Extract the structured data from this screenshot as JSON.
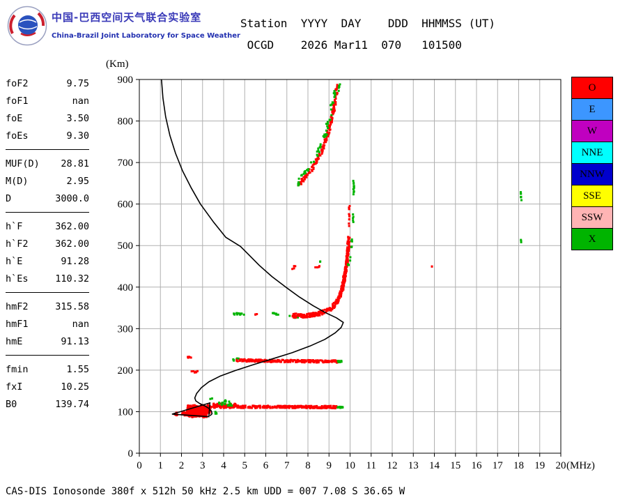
{
  "header": {
    "org_title_cn": "中国-巴西空间天气联合实验室",
    "org_title_en": "China-Brazil Joint Laboratory for Space Weather",
    "station_line1": "Station  YYYY  DAY    DDD  HHMMSS (UT)",
    "station_line2": " OCGD    2026 Mar11  070   101500"
  },
  "params": {
    "groups": [
      {
        "items": [
          {
            "label": "foF2",
            "value": "9.75"
          },
          {
            "label": "foF1",
            "value": "nan"
          },
          {
            "label": "foE",
            "value": "3.50"
          },
          {
            "label": "foEs",
            "value": "9.30"
          }
        ]
      },
      {
        "items": [
          {
            "label": "MUF(D)",
            "value": "28.81"
          },
          {
            "label": "M(D)",
            "value": "2.95"
          },
          {
            "label": "D",
            "value": "3000.0"
          }
        ]
      },
      {
        "items": [
          {
            "label": "h`F",
            "value": "362.00"
          },
          {
            "label": "h`F2",
            "value": "362.00"
          },
          {
            "label": "h`E",
            "value": "91.28"
          },
          {
            "label": "h`Es",
            "value": "110.32"
          }
        ]
      },
      {
        "items": [
          {
            "label": "hmF2",
            "value": "315.58"
          },
          {
            "label": "hmF1",
            "value": "nan"
          },
          {
            "label": "hmE",
            "value": "91.13"
          }
        ]
      },
      {
        "items": [
          {
            "label": "fmin",
            "value": "1.55"
          },
          {
            "label": "fxI",
            "value": "10.25"
          },
          {
            "label": "B0",
            "value": "139.74"
          }
        ]
      }
    ]
  },
  "legend": {
    "items": [
      {
        "label": "O",
        "color": "#ff0000"
      },
      {
        "label": "E",
        "color": "#3c96ff"
      },
      {
        "label": "W",
        "color": "#c000c0"
      },
      {
        "label": "NNE",
        "color": "#00ffff"
      },
      {
        "label": "NNW",
        "color": "#0000cd"
      },
      {
        "label": "SSE",
        "color": "#ffff00"
      },
      {
        "label": "SSW",
        "color": "#ffb4b4"
      },
      {
        "label": "X",
        "color": "#00b400"
      }
    ]
  },
  "footer": {
    "text": "CAS-DIS Ionosonde 380f x 512h 50 kHz 2.5 km UDD = 007 7.08 S 36.65 W"
  },
  "chart_data": {
    "type": "scatter",
    "title": "",
    "xlabel": "(MHz)",
    "ylabel": "(Km)",
    "xlim": [
      0,
      20
    ],
    "ylim": [
      0,
      900
    ],
    "grid": true,
    "x_ticks": [
      0,
      1,
      2,
      3,
      4,
      5,
      6,
      7,
      8,
      9,
      10,
      11,
      12,
      13,
      14,
      15,
      16,
      17,
      18,
      19,
      20
    ],
    "y_ticks": [
      0,
      100,
      200,
      300,
      400,
      500,
      600,
      700,
      800,
      900
    ],
    "legend_note": "O-trace red, X-trace green",
    "profile": {
      "color": "#000000",
      "main": [
        [
          1.05,
          900
        ],
        [
          1.12,
          855
        ],
        [
          1.25,
          810
        ],
        [
          1.45,
          765
        ],
        [
          1.72,
          722
        ],
        [
          2.05,
          680
        ],
        [
          2.45,
          640
        ],
        [
          2.9,
          600
        ],
        [
          3.5,
          558
        ],
        [
          4.1,
          520
        ],
        [
          4.8,
          498
        ],
        [
          5.15,
          480
        ],
        [
          5.7,
          452
        ],
        [
          6.3,
          425
        ],
        [
          6.95,
          400
        ],
        [
          7.6,
          376
        ],
        [
          8.25,
          355
        ],
        [
          8.85,
          338
        ],
        [
          9.35,
          326
        ],
        [
          9.68,
          315
        ],
        [
          9.58,
          303
        ],
        [
          9.3,
          290
        ],
        [
          8.8,
          274
        ],
        [
          8.1,
          258
        ],
        [
          7.25,
          242
        ],
        [
          6.3,
          227
        ],
        [
          5.4,
          213
        ],
        [
          4.55,
          199
        ],
        [
          3.85,
          186
        ],
        [
          3.3,
          172
        ],
        [
          2.95,
          158
        ],
        [
          2.72,
          144
        ],
        [
          2.63,
          133
        ],
        [
          2.68,
          126
        ],
        [
          2.85,
          120
        ],
        [
          3.1,
          114
        ],
        [
          3.3,
          108
        ],
        [
          3.42,
          101
        ],
        [
          3.45,
          95
        ],
        [
          3.35,
          90
        ]
      ],
      "e_polygon": [
        [
          1.55,
          94
        ],
        [
          3.35,
          121
        ],
        [
          3.3,
          88
        ]
      ]
    },
    "traces": [
      {
        "color": "#ff0000",
        "pts": [
          [
            2.25,
            107
          ],
          [
            3.35,
            107
          ]
        ],
        "n": 160,
        "jy": 9,
        "jx": 0.05,
        "s": 3
      },
      {
        "color": "#ff0000",
        "pts": [
          [
            2.25,
            98
          ],
          [
            3.3,
            98
          ]
        ],
        "n": 120,
        "jy": 8,
        "jx": 0.05,
        "s": 3
      },
      {
        "color": "#ff0000",
        "pts": [
          [
            1.7,
            95
          ],
          [
            2.2,
            95
          ]
        ],
        "n": 14,
        "jy": 4,
        "jx": 0.05,
        "s": 3
      },
      {
        "color": "#ff0000",
        "pts": [
          [
            2.3,
            91
          ],
          [
            3.2,
            90
          ]
        ],
        "n": 40,
        "jy": 4,
        "jx": 0.05,
        "s": 3
      },
      {
        "color": "#ff0000",
        "pts": [
          [
            3.35,
            112
          ],
          [
            9.35,
            111
          ]
        ],
        "n": 300,
        "jy": 3,
        "jx": 0.03,
        "s": 3
      },
      {
        "color": "#ff0000",
        "pts": [
          [
            3.4,
            117
          ],
          [
            4.7,
            116
          ]
        ],
        "n": 40,
        "jy": 3,
        "jx": 0.03,
        "s": 3
      },
      {
        "color": "#00b400",
        "pts": [
          [
            3.75,
            119
          ],
          [
            4.4,
            117
          ]
        ],
        "n": 16,
        "jy": 4,
        "jx": 0.04,
        "s": 3
      },
      {
        "color": "#00b400",
        "pts": [
          [
            3.95,
            126
          ],
          [
            4.3,
            125
          ]
        ],
        "n": 6,
        "jy": 2,
        "jx": 0.03,
        "s": 3
      },
      {
        "color": "#00b400",
        "pts": [
          [
            3.55,
            99
          ],
          [
            3.7,
            97
          ]
        ],
        "n": 4,
        "jy": 3,
        "jx": 0.03,
        "s": 3
      },
      {
        "color": "#00b400",
        "pts": [
          [
            9.35,
            110
          ],
          [
            9.65,
            110
          ]
        ],
        "n": 10,
        "jy": 2,
        "jx": 0.03,
        "s": 3
      },
      {
        "color": "#00b400",
        "pts": [
          [
            3.3,
            131
          ],
          [
            3.5,
            131
          ]
        ],
        "n": 3,
        "jy": 1,
        "jx": 0.03,
        "s": 3
      },
      {
        "color": "#ff0000",
        "pts": [
          [
            2.5,
            196
          ],
          [
            2.75,
            196
          ]
        ],
        "n": 7,
        "jy": 2,
        "jx": 0.03,
        "s": 3
      },
      {
        "color": "#ff0000",
        "pts": [
          [
            2.3,
            231
          ],
          [
            2.5,
            231
          ]
        ],
        "n": 6,
        "jy": 2,
        "jx": 0.03,
        "s": 3
      },
      {
        "color": "#00b400",
        "pts": [
          [
            4.45,
            226
          ],
          [
            4.7,
            225
          ]
        ],
        "n": 8,
        "jy": 3,
        "jx": 0.03,
        "s": 3
      },
      {
        "color": "#ff0000",
        "pts": [
          [
            4.6,
            224
          ],
          [
            6.5,
            222
          ],
          [
            9.4,
            221
          ]
        ],
        "n": 240,
        "jy": 3,
        "jx": 0.03,
        "s": 3
      },
      {
        "color": "#00b400",
        "pts": [
          [
            9.4,
            221
          ],
          [
            9.62,
            221
          ]
        ],
        "n": 8,
        "jy": 2,
        "jx": 0.03,
        "s": 3
      },
      {
        "color": "#00b400",
        "pts": [
          [
            4.4,
            336
          ],
          [
            5.0,
            335
          ]
        ],
        "n": 14,
        "jy": 2,
        "jx": 0.04,
        "s": 3
      },
      {
        "color": "#ff0000",
        "pts": [
          [
            5.5,
            334
          ],
          [
            5.65,
            334
          ]
        ],
        "n": 3,
        "jy": 1,
        "jx": 0.03,
        "s": 3
      },
      {
        "color": "#00b400",
        "pts": [
          [
            6.3,
            336
          ],
          [
            6.6,
            335
          ]
        ],
        "n": 8,
        "jy": 2,
        "jx": 0.03,
        "s": 3
      },
      {
        "color": "#00b400",
        "pts": [
          [
            7.15,
            329
          ],
          [
            7.5,
            327
          ]
        ],
        "n": 10,
        "jy": 2,
        "jx": 0.03,
        "s": 3
      },
      {
        "color": "#ff0000",
        "pts": [
          [
            7.3,
            331
          ],
          [
            8.0,
            332
          ],
          [
            8.6,
            337
          ],
          [
            9.0,
            345
          ],
          [
            9.25,
            356
          ],
          [
            9.5,
            375
          ],
          [
            9.65,
            400
          ],
          [
            9.75,
            430
          ],
          [
            9.85,
            460
          ],
          [
            9.9,
            490
          ],
          [
            9.95,
            520
          ]
        ],
        "n": 360,
        "jy": 5,
        "jx": 0.05,
        "s": 3
      },
      {
        "color": "#00b400",
        "pts": [
          [
            9.9,
            450
          ],
          [
            10.0,
            470
          ]
        ],
        "n": 5,
        "jy": 4,
        "jx": 0.03,
        "s": 3
      },
      {
        "color": "#00b400",
        "pts": [
          [
            10.05,
            488
          ],
          [
            10.1,
            515
          ]
        ],
        "n": 6,
        "jy": 4,
        "jx": 0.03,
        "s": 3
      },
      {
        "color": "#ff0000",
        "pts": [
          [
            9.95,
            540
          ],
          [
            9.97,
            600
          ]
        ],
        "n": 12,
        "jy": 5,
        "jx": 0.02,
        "s": 3
      },
      {
        "color": "#00b400",
        "pts": [
          [
            10.15,
            556
          ],
          [
            10.15,
            574
          ]
        ],
        "n": 5,
        "jy": 3,
        "jx": 0.02,
        "s": 3
      },
      {
        "color": "#00b400",
        "pts": [
          [
            10.17,
            622
          ],
          [
            10.17,
            660
          ]
        ],
        "n": 12,
        "jy": 4,
        "jx": 0.02,
        "s": 3
      },
      {
        "color": "#ff0000",
        "pts": [
          [
            8.3,
            448
          ],
          [
            8.55,
            452
          ]
        ],
        "n": 5,
        "jy": 4,
        "jx": 0.04,
        "s": 3
      },
      {
        "color": "#00b400",
        "pts": [
          [
            8.55,
            462
          ],
          [
            8.62,
            462
          ]
        ],
        "n": 2,
        "jy": 1,
        "jx": 0.02,
        "s": 3
      },
      {
        "color": "#ff0000",
        "pts": [
          [
            7.25,
            446
          ],
          [
            7.45,
            449
          ]
        ],
        "n": 5,
        "jy": 3,
        "jx": 0.04,
        "s": 3
      },
      {
        "color": "#ff0000",
        "pts": [
          [
            7.55,
            645
          ],
          [
            7.85,
            662
          ],
          [
            8.15,
            682
          ],
          [
            8.45,
            706
          ],
          [
            8.7,
            732
          ],
          [
            8.9,
            760
          ],
          [
            9.05,
            788
          ],
          [
            9.18,
            816
          ],
          [
            9.28,
            844
          ],
          [
            9.35,
            868
          ],
          [
            9.4,
            888
          ]
        ],
        "n": 160,
        "jy": 6,
        "jx": 0.05,
        "s": 3
      },
      {
        "color": "#00b400",
        "pts": [
          [
            7.5,
            650
          ],
          [
            7.8,
            668
          ],
          [
            8.1,
            690
          ],
          [
            8.4,
            714
          ],
          [
            8.62,
            740
          ],
          [
            8.82,
            768
          ],
          [
            8.98,
            796
          ],
          [
            9.1,
            824
          ],
          [
            9.2,
            852
          ],
          [
            9.3,
            876
          ]
        ],
        "n": 55,
        "jy": 6,
        "jx": 0.06,
        "s": 3
      },
      {
        "color": "#00b400",
        "pts": [
          [
            9.45,
            870
          ],
          [
            9.5,
            888
          ]
        ],
        "n": 5,
        "jy": 3,
        "jx": 0.03,
        "s": 3
      },
      {
        "color": "#ff0000",
        "pts": [
          [
            13.85,
            450
          ],
          [
            13.9,
            450
          ]
        ],
        "n": 2,
        "jy": 1,
        "jx": 0.02,
        "s": 3
      },
      {
        "color": "#00b400",
        "pts": [
          [
            18.1,
            503
          ],
          [
            18.1,
            516
          ]
        ],
        "n": 4,
        "jy": 2,
        "jx": 0.02,
        "s": 3
      },
      {
        "color": "#00b400",
        "pts": [
          [
            18.12,
            608
          ],
          [
            18.12,
            634
          ]
        ],
        "n": 7,
        "jy": 3,
        "jx": 0.02,
        "s": 3
      }
    ]
  }
}
